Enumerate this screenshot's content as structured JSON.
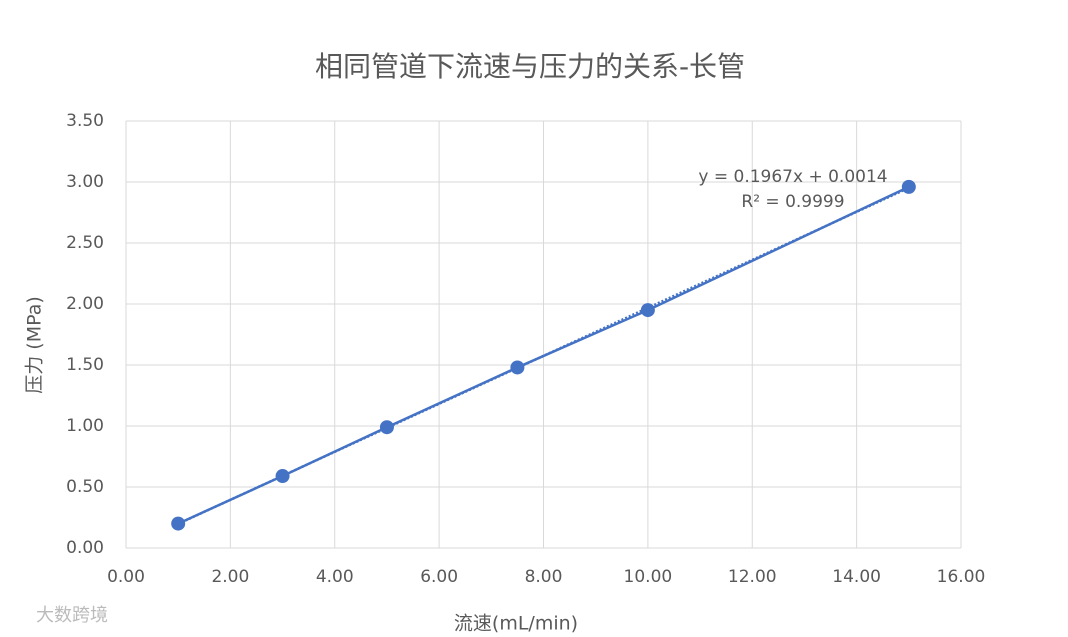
{
  "chart_data": {
    "type": "scatter",
    "title": "相同管道下流速与压力的关系-长管",
    "x_label": "流速(mL/min)",
    "y_label": "压力 (MPa)",
    "series": [
      {
        "name": "压力",
        "color": "#4472c4",
        "x": [
          1,
          3,
          5,
          7.5,
          10,
          15
        ],
        "values": [
          0.2,
          0.59,
          0.99,
          1.48,
          1.95,
          2.96
        ]
      }
    ],
    "trendline": {
      "slope": 0.1967,
      "intercept": 0.0014,
      "equation": "y = 0.1967x + 0.0014",
      "r2_label": "R² = 0.9999"
    },
    "xlim": [
      0,
      16
    ],
    "xticks": [
      {
        "value": 0,
        "label": "0.00"
      },
      {
        "value": 2,
        "label": "2.00"
      },
      {
        "value": 4,
        "label": "4.00"
      },
      {
        "value": 6,
        "label": "6.00"
      },
      {
        "value": 8,
        "label": "8.00"
      },
      {
        "value": 10,
        "label": "10.00"
      },
      {
        "value": 12,
        "label": "12.00"
      },
      {
        "value": 14,
        "label": "14.00"
      },
      {
        "value": 16,
        "label": "16.00"
      }
    ],
    "ylim": [
      0,
      3.5
    ],
    "yticks": [
      {
        "value": 0,
        "label": "0.00"
      },
      {
        "value": 0.5,
        "label": "0.50"
      },
      {
        "value": 1,
        "label": "1.00"
      },
      {
        "value": 1.5,
        "label": "1.50"
      },
      {
        "value": 2,
        "label": "2.00"
      },
      {
        "value": 2.5,
        "label": "2.50"
      },
      {
        "value": 3,
        "label": "3.00"
      },
      {
        "value": 3.5,
        "label": "3.50"
      }
    ],
    "grid": true,
    "watermark": "大数跨境"
  }
}
